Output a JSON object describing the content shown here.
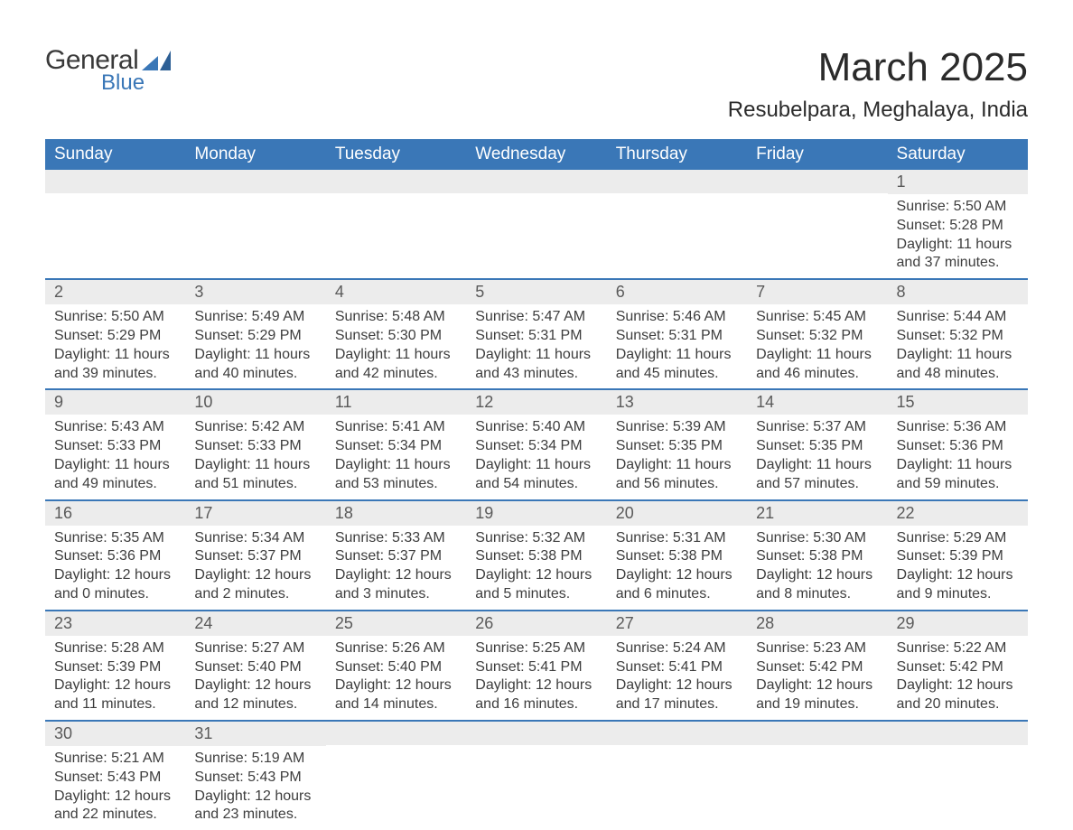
{
  "logo": {
    "general": "General",
    "blue": "Blue"
  },
  "title": {
    "month": "March 2025",
    "location": "Resubelpara, Meghalaya, India"
  },
  "weekdays": [
    "Sunday",
    "Monday",
    "Tuesday",
    "Wednesday",
    "Thursday",
    "Friday",
    "Saturday"
  ],
  "colors": {
    "header_bg": "#3a77b7",
    "header_text": "#ffffff",
    "daynum_bg": "#ececec",
    "daynum_text": "#5a5a5a",
    "row_border": "#3a77b7",
    "body_text": "#3d3d3d",
    "page_bg": "#ffffff"
  },
  "fonts": {
    "title_size_pt": 33,
    "location_size_pt": 18,
    "weekday_size_pt": 14,
    "daynum_size_pt": 13,
    "body_size_pt": 12
  },
  "calendar": {
    "type": "table",
    "columns": 7,
    "rows": 6,
    "weeks": [
      [
        null,
        null,
        null,
        null,
        null,
        null,
        {
          "n": "1",
          "sunrise": "Sunrise: 5:50 AM",
          "sunset": "Sunset: 5:28 PM",
          "daylight1": "Daylight: 11 hours",
          "daylight2": "and 37 minutes."
        }
      ],
      [
        {
          "n": "2",
          "sunrise": "Sunrise: 5:50 AM",
          "sunset": "Sunset: 5:29 PM",
          "daylight1": "Daylight: 11 hours",
          "daylight2": "and 39 minutes."
        },
        {
          "n": "3",
          "sunrise": "Sunrise: 5:49 AM",
          "sunset": "Sunset: 5:29 PM",
          "daylight1": "Daylight: 11 hours",
          "daylight2": "and 40 minutes."
        },
        {
          "n": "4",
          "sunrise": "Sunrise: 5:48 AM",
          "sunset": "Sunset: 5:30 PM",
          "daylight1": "Daylight: 11 hours",
          "daylight2": "and 42 minutes."
        },
        {
          "n": "5",
          "sunrise": "Sunrise: 5:47 AM",
          "sunset": "Sunset: 5:31 PM",
          "daylight1": "Daylight: 11 hours",
          "daylight2": "and 43 minutes."
        },
        {
          "n": "6",
          "sunrise": "Sunrise: 5:46 AM",
          "sunset": "Sunset: 5:31 PM",
          "daylight1": "Daylight: 11 hours",
          "daylight2": "and 45 minutes."
        },
        {
          "n": "7",
          "sunrise": "Sunrise: 5:45 AM",
          "sunset": "Sunset: 5:32 PM",
          "daylight1": "Daylight: 11 hours",
          "daylight2": "and 46 minutes."
        },
        {
          "n": "8",
          "sunrise": "Sunrise: 5:44 AM",
          "sunset": "Sunset: 5:32 PM",
          "daylight1": "Daylight: 11 hours",
          "daylight2": "and 48 minutes."
        }
      ],
      [
        {
          "n": "9",
          "sunrise": "Sunrise: 5:43 AM",
          "sunset": "Sunset: 5:33 PM",
          "daylight1": "Daylight: 11 hours",
          "daylight2": "and 49 minutes."
        },
        {
          "n": "10",
          "sunrise": "Sunrise: 5:42 AM",
          "sunset": "Sunset: 5:33 PM",
          "daylight1": "Daylight: 11 hours",
          "daylight2": "and 51 minutes."
        },
        {
          "n": "11",
          "sunrise": "Sunrise: 5:41 AM",
          "sunset": "Sunset: 5:34 PM",
          "daylight1": "Daylight: 11 hours",
          "daylight2": "and 53 minutes."
        },
        {
          "n": "12",
          "sunrise": "Sunrise: 5:40 AM",
          "sunset": "Sunset: 5:34 PM",
          "daylight1": "Daylight: 11 hours",
          "daylight2": "and 54 minutes."
        },
        {
          "n": "13",
          "sunrise": "Sunrise: 5:39 AM",
          "sunset": "Sunset: 5:35 PM",
          "daylight1": "Daylight: 11 hours",
          "daylight2": "and 56 minutes."
        },
        {
          "n": "14",
          "sunrise": "Sunrise: 5:37 AM",
          "sunset": "Sunset: 5:35 PM",
          "daylight1": "Daylight: 11 hours",
          "daylight2": "and 57 minutes."
        },
        {
          "n": "15",
          "sunrise": "Sunrise: 5:36 AM",
          "sunset": "Sunset: 5:36 PM",
          "daylight1": "Daylight: 11 hours",
          "daylight2": "and 59 minutes."
        }
      ],
      [
        {
          "n": "16",
          "sunrise": "Sunrise: 5:35 AM",
          "sunset": "Sunset: 5:36 PM",
          "daylight1": "Daylight: 12 hours",
          "daylight2": "and 0 minutes."
        },
        {
          "n": "17",
          "sunrise": "Sunrise: 5:34 AM",
          "sunset": "Sunset: 5:37 PM",
          "daylight1": "Daylight: 12 hours",
          "daylight2": "and 2 minutes."
        },
        {
          "n": "18",
          "sunrise": "Sunrise: 5:33 AM",
          "sunset": "Sunset: 5:37 PM",
          "daylight1": "Daylight: 12 hours",
          "daylight2": "and 3 minutes."
        },
        {
          "n": "19",
          "sunrise": "Sunrise: 5:32 AM",
          "sunset": "Sunset: 5:38 PM",
          "daylight1": "Daylight: 12 hours",
          "daylight2": "and 5 minutes."
        },
        {
          "n": "20",
          "sunrise": "Sunrise: 5:31 AM",
          "sunset": "Sunset: 5:38 PM",
          "daylight1": "Daylight: 12 hours",
          "daylight2": "and 6 minutes."
        },
        {
          "n": "21",
          "sunrise": "Sunrise: 5:30 AM",
          "sunset": "Sunset: 5:38 PM",
          "daylight1": "Daylight: 12 hours",
          "daylight2": "and 8 minutes."
        },
        {
          "n": "22",
          "sunrise": "Sunrise: 5:29 AM",
          "sunset": "Sunset: 5:39 PM",
          "daylight1": "Daylight: 12 hours",
          "daylight2": "and 9 minutes."
        }
      ],
      [
        {
          "n": "23",
          "sunrise": "Sunrise: 5:28 AM",
          "sunset": "Sunset: 5:39 PM",
          "daylight1": "Daylight: 12 hours",
          "daylight2": "and 11 minutes."
        },
        {
          "n": "24",
          "sunrise": "Sunrise: 5:27 AM",
          "sunset": "Sunset: 5:40 PM",
          "daylight1": "Daylight: 12 hours",
          "daylight2": "and 12 minutes."
        },
        {
          "n": "25",
          "sunrise": "Sunrise: 5:26 AM",
          "sunset": "Sunset: 5:40 PM",
          "daylight1": "Daylight: 12 hours",
          "daylight2": "and 14 minutes."
        },
        {
          "n": "26",
          "sunrise": "Sunrise: 5:25 AM",
          "sunset": "Sunset: 5:41 PM",
          "daylight1": "Daylight: 12 hours",
          "daylight2": "and 16 minutes."
        },
        {
          "n": "27",
          "sunrise": "Sunrise: 5:24 AM",
          "sunset": "Sunset: 5:41 PM",
          "daylight1": "Daylight: 12 hours",
          "daylight2": "and 17 minutes."
        },
        {
          "n": "28",
          "sunrise": "Sunrise: 5:23 AM",
          "sunset": "Sunset: 5:42 PM",
          "daylight1": "Daylight: 12 hours",
          "daylight2": "and 19 minutes."
        },
        {
          "n": "29",
          "sunrise": "Sunrise: 5:22 AM",
          "sunset": "Sunset: 5:42 PM",
          "daylight1": "Daylight: 12 hours",
          "daylight2": "and 20 minutes."
        }
      ],
      [
        {
          "n": "30",
          "sunrise": "Sunrise: 5:21 AM",
          "sunset": "Sunset: 5:43 PM",
          "daylight1": "Daylight: 12 hours",
          "daylight2": "and 22 minutes."
        },
        {
          "n": "31",
          "sunrise": "Sunrise: 5:19 AM",
          "sunset": "Sunset: 5:43 PM",
          "daylight1": "Daylight: 12 hours",
          "daylight2": "and 23 minutes."
        },
        null,
        null,
        null,
        null,
        null
      ]
    ]
  }
}
